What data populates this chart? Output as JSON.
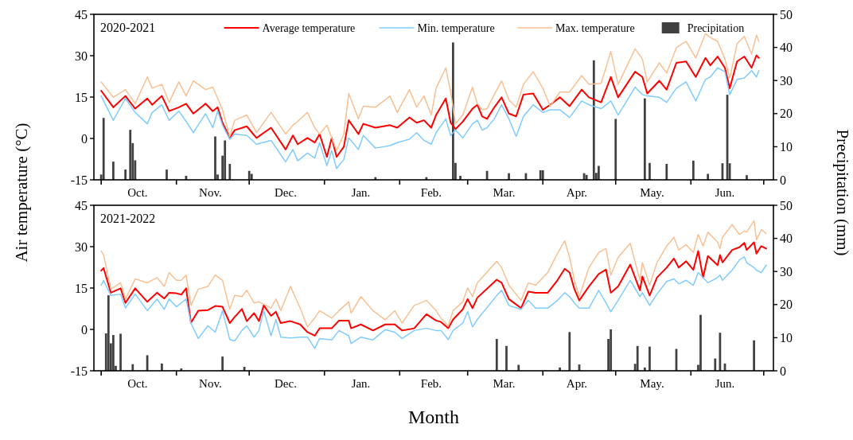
{
  "chart_data": [
    {
      "type": "line",
      "title": "2020-2021",
      "ylabel": "Air temperature (°C)",
      "y2label": "Precipitation (mm)",
      "legend": "top right",
      "x": [
        "2020-10-01",
        "2020-10-06",
        "2020-10-11",
        "2020-10-15",
        "2020-10-20",
        "2020-10-22",
        "2020-10-26",
        "2020-10-29",
        "2020-11-02",
        "2020-11-05",
        "2020-11-08",
        "2020-11-13",
        "2020-11-16",
        "2020-11-18",
        "2020-11-20",
        "2020-11-23",
        "2020-11-25",
        "2020-11-30",
        "2020-12-04",
        "2020-12-10",
        "2020-12-16",
        "2020-12-19",
        "2020-12-21",
        "2020-12-25",
        "2020-12-28",
        "2020-12-30",
        "2021-01-02",
        "2021-01-04",
        "2021-01-06",
        "2021-01-09",
        "2021-01-11",
        "2021-01-15",
        "2021-01-17",
        "2021-01-22",
        "2021-01-28",
        "2021-01-31",
        "2021-02-05",
        "2021-02-08",
        "2021-02-11",
        "2021-02-14",
        "2021-02-16",
        "2021-02-20",
        "2021-02-22",
        "2021-02-24",
        "2021-02-27",
        "2021-03-03",
        "2021-03-05",
        "2021-03-07",
        "2021-03-09",
        "2021-03-12",
        "2021-03-15",
        "2021-03-18",
        "2021-03-21",
        "2021-03-24",
        "2021-03-28",
        "2021-04-01",
        "2021-04-04",
        "2021-04-08",
        "2021-04-12",
        "2021-04-17",
        "2021-04-20",
        "2021-04-25",
        "2021-04-29",
        "2021-05-02",
        "2021-05-09",
        "2021-05-12",
        "2021-05-14",
        "2021-05-19",
        "2021-05-22",
        "2021-05-26",
        "2021-05-30",
        "2021-06-03",
        "2021-06-07",
        "2021-06-09",
        "2021-06-12",
        "2021-06-15",
        "2021-06-17",
        "2021-06-20",
        "2021-06-23",
        "2021-06-26",
        "2021-06-28",
        "2021-06-29"
      ],
      "xlim": [
        "2020-09-28",
        "2021-07-05"
      ],
      "xticks": [
        {
          "value": "2020-10-01",
          "label": null
        },
        {
          "value": "2020-11-01",
          "label": null
        },
        {
          "value": "2020-12-01",
          "label": null
        },
        {
          "value": "2021-01-01",
          "label": null
        },
        {
          "value": "2021-02-01",
          "label": null
        },
        {
          "value": "2021-03-01",
          "label": null
        },
        {
          "value": "2021-04-01",
          "label": null
        },
        {
          "value": "2021-05-01",
          "label": null
        },
        {
          "value": "2021-06-01",
          "label": null
        },
        {
          "value": "2021-07-01",
          "label": null
        },
        {
          "value": "2020-10-16",
          "label": "Oct."
        },
        {
          "value": "2020-11-15",
          "label": "Nov."
        },
        {
          "value": "2020-12-16",
          "label": "Dec."
        },
        {
          "value": "2021-01-16",
          "label": "Jan."
        },
        {
          "value": "2021-02-14",
          "label": "Feb."
        },
        {
          "value": "2021-03-16",
          "label": "Mar."
        },
        {
          "value": "2021-04-15",
          "label": "Apr."
        },
        {
          "value": "2021-05-16",
          "label": "May."
        },
        {
          "value": "2021-06-15",
          "label": "Jun."
        }
      ],
      "ylim": [
        -15,
        45
      ],
      "yticks": [
        -15,
        0,
        15,
        30,
        45
      ],
      "y2lim": [
        0,
        50
      ],
      "y2ticks": [
        0,
        10,
        20,
        30,
        40,
        50
      ],
      "series": [
        {
          "name": "Average temperature",
          "color": "#ff0000",
          "values": [
            17.3,
            11.3,
            15.4,
            10.8,
            14.5,
            12.2,
            15.4,
            9.9,
            11.3,
            12.6,
            9.0,
            12.6,
            9.9,
            11.3,
            5.7,
            0.2,
            3.0,
            4.4,
            0.2,
            3.9,
            -4.0,
            1.1,
            -2.1,
            0.2,
            -1.5,
            1.6,
            -6.7,
            0.2,
            -6.7,
            -3.0,
            6.6,
            1.6,
            5.3,
            3.9,
            4.8,
            3.9,
            7.6,
            5.7,
            6.6,
            3.9,
            8.5,
            14.5,
            5.7,
            3.4,
            6.1,
            10.8,
            12.2,
            8.0,
            7.1,
            11.3,
            14.9,
            9.0,
            8.0,
            15.9,
            16.3,
            10.4,
            12.2,
            14.9,
            11.7,
            17.7,
            14.9,
            13.1,
            22.3,
            14.9,
            24.2,
            22.3,
            16.3,
            20.9,
            17.7,
            27.4,
            27.9,
            22.3,
            29.2,
            26.5,
            29.7,
            25.6,
            18.2,
            27.9,
            29.7,
            25.6,
            30.1,
            29.2
          ]
        },
        {
          "name": "Min. temperature",
          "color": "#80ccff",
          "values": [
            15.4,
            6.6,
            14.5,
            9.4,
            5.3,
            9.4,
            12.2,
            6.6,
            9.9,
            6.2,
            2.1,
            9.0,
            3.9,
            9.9,
            4.8,
            -0.3,
            1.6,
            1.1,
            -2.1,
            -0.7,
            -8.5,
            -4.0,
            -8.1,
            -5.3,
            -7.1,
            -1.5,
            -9.9,
            -4.4,
            -10.9,
            -7.6,
            0.2,
            -4.0,
            1.1,
            -3.5,
            -2.6,
            -1.5,
            -0.3,
            2.1,
            -0.7,
            -2.1,
            2.1,
            7.1,
            1.1,
            3.0,
            0.2,
            5.3,
            6.6,
            3.0,
            3.9,
            7.1,
            12.2,
            7.1,
            0.7,
            8.0,
            12.2,
            9.4,
            10.4,
            10.4,
            7.6,
            13.6,
            12.2,
            10.8,
            13.6,
            8.5,
            18.6,
            15.9,
            15.4,
            14.9,
            13.1,
            18.2,
            20.5,
            13.6,
            21.4,
            22.3,
            25.6,
            24.2,
            15.9,
            21.4,
            21.9,
            24.6,
            22.3,
            24.6
          ]
        },
        {
          "name": "Max. temperature",
          "color": "#f9c193",
          "values": [
            20.5,
            14.9,
            17.7,
            12.6,
            22.3,
            18.2,
            19.6,
            13.1,
            20.5,
            15.4,
            20.9,
            17.7,
            18.6,
            14.5,
            10.4,
            0.7,
            6.6,
            8.5,
            2.1,
            9.4,
            1.6,
            4.8,
            6.2,
            9.4,
            3.9,
            1.6,
            4.8,
            0.2,
            -4.4,
            1.6,
            16.3,
            7.1,
            11.7,
            11.3,
            15.4,
            9.4,
            17.7,
            11.3,
            15.4,
            8.5,
            18.2,
            25.6,
            16.8,
            5.3,
            8.5,
            18.6,
            12.6,
            10.4,
            10.8,
            15.9,
            20.9,
            14.0,
            11.3,
            19.6,
            24.2,
            18.2,
            11.7,
            16.8,
            16.8,
            22.8,
            19.6,
            20.0,
            31.5,
            19.6,
            32.5,
            28.8,
            20.5,
            27.4,
            23.7,
            32.9,
            35.2,
            29.2,
            38.0,
            36.6,
            35.2,
            28.8,
            21.9,
            34.3,
            37.0,
            30.6,
            37.5,
            35.2
          ]
        },
        {
          "name": "Precipitation",
          "type": "bar",
          "axis": "y2",
          "color": "#404040",
          "x": [
            "2020-10-01",
            "2020-10-02",
            "2020-10-06",
            "2020-10-11",
            "2020-10-13",
            "2020-10-14",
            "2020-10-15",
            "2020-10-28",
            "2020-11-05",
            "2020-11-17",
            "2020-11-18",
            "2020-11-20",
            "2020-11-21",
            "2020-11-23",
            "2020-12-01",
            "2020-12-02",
            "2021-01-22",
            "2021-02-12",
            "2021-02-23",
            "2021-02-24",
            "2021-02-26",
            "2021-03-09",
            "2021-03-18",
            "2021-03-25",
            "2021-03-31",
            "2021-04-01",
            "2021-04-18",
            "2021-04-19",
            "2021-04-22",
            "2021-04-23",
            "2021-04-24",
            "2021-05-01",
            "2021-05-13",
            "2021-05-15",
            "2021-05-22",
            "2021-06-02",
            "2021-06-08",
            "2021-06-14",
            "2021-06-16",
            "2021-06-17",
            "2021-06-24"
          ],
          "values": [
            1.6,
            18.7,
            5.5,
            3.1,
            15.1,
            11.1,
            5.9,
            3.1,
            1.2,
            13.1,
            1.6,
            7.3,
            11.9,
            4.8,
            2.7,
            1.8,
            0.8,
            0.8,
            41.5,
            5.1,
            1.2,
            2.7,
            2.0,
            2.0,
            2.9,
            2.9,
            2.0,
            1.5,
            36.1,
            2.1,
            4.2,
            18.4,
            24.6,
            5.1,
            4.8,
            5.8,
            1.8,
            5.0,
            25.7,
            5.0,
            1.4
          ]
        }
      ]
    },
    {
      "type": "line",
      "title": "2021-2022",
      "xlabel": "Month",
      "x": [
        "2021-10-01",
        "2021-10-02",
        "2021-10-05",
        "2021-10-09",
        "2021-10-11",
        "2021-10-15",
        "2021-10-20",
        "2021-10-24",
        "2021-10-27",
        "2021-10-29",
        "2021-11-01",
        "2021-11-03",
        "2021-11-05",
        "2021-11-07",
        "2021-11-10",
        "2021-11-14",
        "2021-11-17",
        "2021-11-20",
        "2021-11-23",
        "2021-11-25",
        "2021-11-28",
        "2021-11-30",
        "2021-12-03",
        "2021-12-05",
        "2021-12-07",
        "2021-12-10",
        "2021-12-12",
        "2021-12-14",
        "2021-12-18",
        "2021-12-22",
        "2021-12-25",
        "2021-12-28",
        "2021-12-30",
        "2022-01-04",
        "2022-01-07",
        "2022-01-11",
        "2022-01-12",
        "2022-01-16",
        "2022-01-21",
        "2022-01-26",
        "2022-01-30",
        "2022-02-02",
        "2022-02-07",
        "2022-02-12",
        "2022-02-16",
        "2022-02-18",
        "2022-02-21",
        "2022-02-23",
        "2022-02-27",
        "2022-03-01",
        "2022-03-03",
        "2022-03-05",
        "2022-03-13",
        "2022-03-15",
        "2022-03-18",
        "2022-03-23",
        "2022-03-26",
        "2022-03-29",
        "2022-04-03",
        "2022-04-07",
        "2022-04-10",
        "2022-04-12",
        "2022-04-14",
        "2022-04-16",
        "2022-04-20",
        "2022-04-24",
        "2022-04-27",
        "2022-04-29",
        "2022-05-02",
        "2022-05-07",
        "2022-05-11",
        "2022-05-12",
        "2022-05-15",
        "2022-05-18",
        "2022-05-22",
        "2022-05-25",
        "2022-05-27",
        "2022-05-30",
        "2022-06-02",
        "2022-06-04",
        "2022-06-06",
        "2022-06-08",
        "2022-06-12",
        "2022-06-13",
        "2022-06-14",
        "2022-06-18",
        "2022-06-21",
        "2022-06-23",
        "2022-06-24",
        "2022-06-27",
        "2022-06-28",
        "2022-06-30",
        "2022-07-02"
      ],
      "xlim": [
        "2021-09-28",
        "2022-07-05"
      ],
      "xticks": [
        {
          "value": "2021-10-01",
          "label": null
        },
        {
          "value": "2021-11-01",
          "label": null
        },
        {
          "value": "2021-12-01",
          "label": null
        },
        {
          "value": "2022-01-01",
          "label": null
        },
        {
          "value": "2022-02-01",
          "label": null
        },
        {
          "value": "2022-03-01",
          "label": null
        },
        {
          "value": "2022-04-01",
          "label": null
        },
        {
          "value": "2022-05-01",
          "label": null
        },
        {
          "value": "2022-06-01",
          "label": null
        },
        {
          "value": "2022-07-01",
          "label": null
        },
        {
          "value": "2021-10-16",
          "label": "Oct."
        },
        {
          "value": "2021-11-15",
          "label": "Nov."
        },
        {
          "value": "2021-12-16",
          "label": "Dec."
        },
        {
          "value": "2022-01-16",
          "label": "Jan."
        },
        {
          "value": "2022-02-14",
          "label": "Feb."
        },
        {
          "value": "2022-03-16",
          "label": "Mar."
        },
        {
          "value": "2022-04-15",
          "label": "Apr."
        },
        {
          "value": "2022-05-16",
          "label": "May."
        },
        {
          "value": "2022-06-15",
          "label": "Jun."
        }
      ],
      "ylim": [
        -15,
        45
      ],
      "yticks": [
        -15,
        0,
        15,
        30,
        45
      ],
      "y2lim": [
        0,
        50
      ],
      "y2ticks": [
        0,
        10,
        20,
        30,
        40,
        50
      ],
      "series": [
        {
          "color": "#ff0000",
          "values": [
            21.3,
            22.2,
            13.3,
            14.9,
            9.6,
            14.9,
            10.0,
            13.3,
            11.2,
            13.3,
            13.1,
            12.6,
            14.9,
            2.4,
            6.8,
            7.0,
            8.5,
            8.2,
            2.3,
            4.5,
            7.4,
            3.0,
            5.9,
            3.0,
            8.7,
            4.9,
            6.4,
            2.3,
            3.0,
            1.8,
            -1.0,
            -2.3,
            0.4,
            0.4,
            3.2,
            3.2,
            0.4,
            1.8,
            -0.4,
            1.8,
            1.8,
            -0.4,
            0.4,
            5.5,
            3.2,
            2.7,
            0.4,
            3.6,
            7.3,
            11.0,
            7.7,
            11.5,
            18.0,
            16.9,
            11.0,
            7.7,
            13.7,
            13.3,
            13.3,
            17.8,
            22.0,
            20.6,
            14.6,
            10.5,
            15.6,
            20.1,
            21.7,
            13.3,
            15.6,
            23.5,
            14.2,
            19.2,
            12.3,
            18.8,
            22.4,
            25.7,
            22.4,
            24.7,
            21.6,
            28.4,
            18.8,
            26.6,
            23.3,
            27.0,
            24.3,
            28.8,
            29.8,
            31.4,
            28.8,
            31.6,
            27.5,
            30.2,
            29.3
          ]
        },
        {
          "color": "#80ccff",
          "values": [
            16.0,
            17.7,
            12.3,
            12.8,
            7.8,
            12.8,
            6.8,
            11.0,
            7.3,
            11.0,
            8.2,
            9.6,
            11.0,
            2.3,
            -3.3,
            1.3,
            -1.0,
            6.8,
            -3.7,
            -4.2,
            -0.4,
            1.3,
            -2.8,
            -0.4,
            6.8,
            -2.3,
            3.6,
            -2.8,
            -3.1,
            -2.8,
            -2.8,
            -6.9,
            -3.3,
            -3.8,
            -0.4,
            -2.3,
            -5.1,
            -2.8,
            -3.8,
            -0.1,
            -1.0,
            -3.3,
            -0.4,
            0.4,
            -0.4,
            -0.4,
            -3.7,
            -0.4,
            2.3,
            6.4,
            0.9,
            3.6,
            12.3,
            14.2,
            8.7,
            7.3,
            10.5,
            7.7,
            7.7,
            10.5,
            13.3,
            11.9,
            9.6,
            7.7,
            7.7,
            14.2,
            9.6,
            6.4,
            10.5,
            17.8,
            11.9,
            13.3,
            8.7,
            12.8,
            17.4,
            18.3,
            16.5,
            17.8,
            16.0,
            20.6,
            18.8,
            16.9,
            18.8,
            19.7,
            17.8,
            21.5,
            25.2,
            26.3,
            24.2,
            22.4,
            21.5,
            20.6,
            23.3
          ]
        },
        {
          "color": "#f9c193",
          "values": [
            28.4,
            27.0,
            14.6,
            16.9,
            11.0,
            18.3,
            16.9,
            18.8,
            15.6,
            20.6,
            17.8,
            17.8,
            19.7,
            8.7,
            14.6,
            15.6,
            19.7,
            17.8,
            7.3,
            12.3,
            11.9,
            14.2,
            9.6,
            10.0,
            9.1,
            7.7,
            11.0,
            6.8,
            15.6,
            7.7,
            0.9,
            4.1,
            6.8,
            4.1,
            6.8,
            10.0,
            5.9,
            11.9,
            6.8,
            3.5,
            6.8,
            2.3,
            8.7,
            10.5,
            6.8,
            4.1,
            1.3,
            6.8,
            10.0,
            15.1,
            11.9,
            16.9,
            24.7,
            22.4,
            16.0,
            10.5,
            16.9,
            16.0,
            20.6,
            27.5,
            32.1,
            26.1,
            17.8,
            11.9,
            22.4,
            27.9,
            29.3,
            19.7,
            26.1,
            31.2,
            17.8,
            24.2,
            16.0,
            24.2,
            30.2,
            33.4,
            28.8,
            30.7,
            27.9,
            34.4,
            30.2,
            35.3,
            31.6,
            29.3,
            33.4,
            38.0,
            34.4,
            35.7,
            35.3,
            39.4,
            32.5,
            36.2,
            34.8
          ]
        },
        {
          "type": "bar",
          "axis": "y2",
          "color": "#404040",
          "x": [
            "2021-10-03",
            "2021-10-04",
            "2021-10-05",
            "2021-10-06",
            "2021-10-07",
            "2021-10-09",
            "2021-10-14",
            "2021-10-20",
            "2021-10-26",
            "2021-11-03",
            "2021-11-20",
            "2021-11-29",
            "2022-03-13",
            "2022-03-17",
            "2022-03-22",
            "2022-04-08",
            "2022-04-12",
            "2022-04-16",
            "2022-04-28",
            "2022-04-29",
            "2022-05-09",
            "2022-05-10",
            "2022-05-13",
            "2022-05-15",
            "2022-05-26",
            "2022-06-04",
            "2022-06-05",
            "2022-06-11",
            "2022-06-13",
            "2022-06-15",
            "2022-06-27"
          ],
          "values": [
            11.3,
            22.8,
            8.3,
            10.8,
            1.5,
            11.2,
            2.0,
            4.7,
            2.2,
            0.7,
            4.3,
            1.2,
            9.6,
            7.5,
            1.8,
            1.0,
            11.7,
            1.9,
            9.6,
            12.5,
            2.1,
            7.5,
            1.0,
            7.3,
            6.6,
            1.8,
            16.9,
            3.7,
            11.5,
            2.2,
            9.2
          ]
        }
      ]
    }
  ]
}
